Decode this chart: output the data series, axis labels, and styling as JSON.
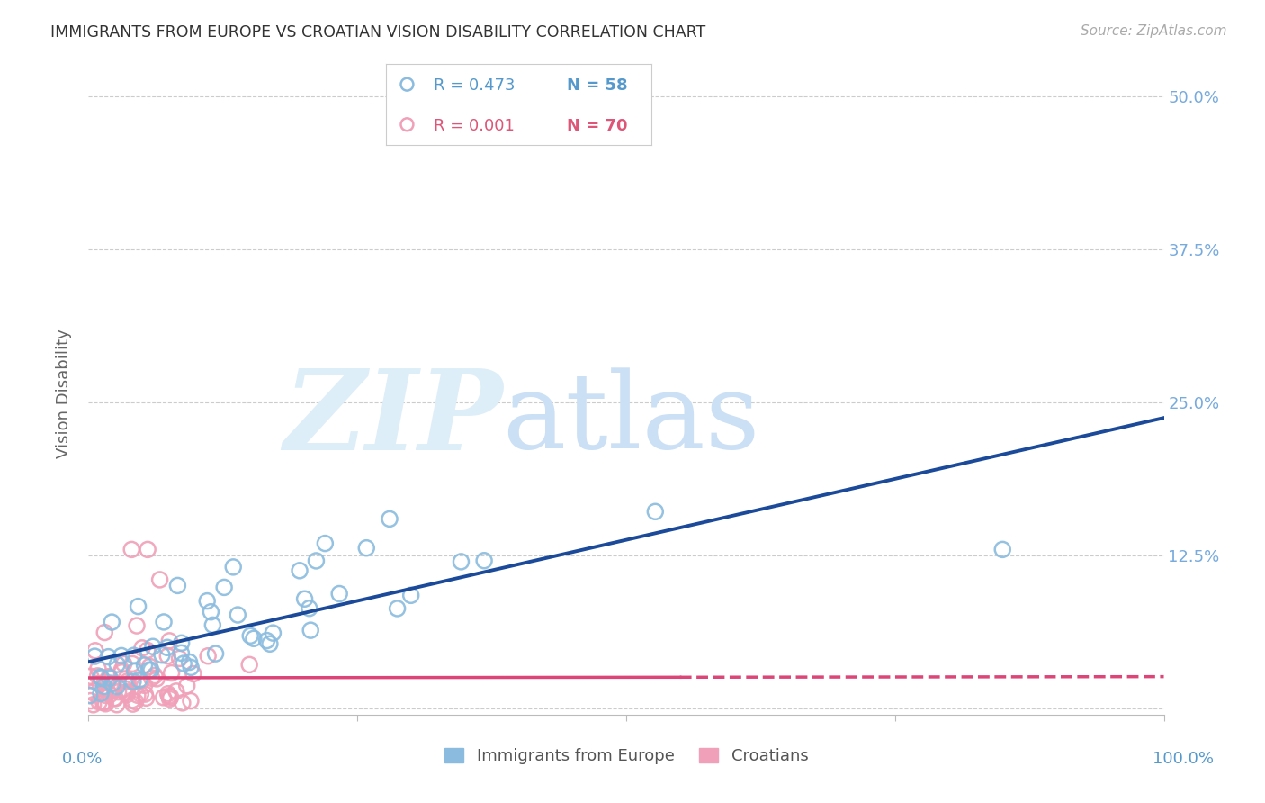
{
  "title": "IMMIGRANTS FROM EUROPE VS CROATIAN VISION DISABILITY CORRELATION CHART",
  "source": "Source: ZipAtlas.com",
  "ylabel": "Vision Disability",
  "xlim": [
    0.0,
    1.0
  ],
  "ylim": [
    -0.005,
    0.52
  ],
  "yticks": [
    0.0,
    0.125,
    0.25,
    0.375,
    0.5
  ],
  "ytick_labels": [
    "",
    "12.5%",
    "25.0%",
    "37.5%",
    "50.0%"
  ],
  "legend_r1": "R = 0.473",
  "legend_n1": "N = 58",
  "legend_r2": "R = 0.001",
  "legend_n2": "N = 70",
  "legend_label1": "Immigrants from Europe",
  "legend_label2": "Croatians",
  "color_blue_scatter": "#8bbcdf",
  "color_pink_scatter": "#f0a0b8",
  "color_line_blue": "#1a4a99",
  "color_line_pink": "#dd4477",
  "color_text_blue": "#5599cc",
  "color_text_pink": "#dd5577",
  "color_ytick": "#77aadd",
  "background_color": "#ffffff",
  "grid_color": "#cccccc",
  "title_color": "#333333",
  "source_color": "#aaaaaa"
}
